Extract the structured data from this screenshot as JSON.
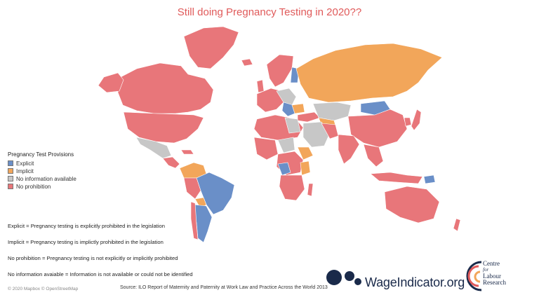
{
  "title": "Still doing Pregnancy Testing in 2020??",
  "legend": {
    "title": "Pregnancy Test Provisions",
    "items": [
      {
        "label": "Explicit",
        "color": "#6a8fc8"
      },
      {
        "label": "Implicit",
        "color": "#f2a65a"
      },
      {
        "label": "No information available",
        "color": "#c7c7c7"
      },
      {
        "label": "No prohibition",
        "color": "#e8767a"
      }
    ]
  },
  "notes": [
    "Explicit = Pregnancy testing is explicitly prohibited in the legislation",
    "Implicit  = Pregnancy testing is implictly prohibited in the legislation",
    "No prohibition = Pregnancy testing is not explicitly or implicitly prohibited",
    "No information avaiable = Information is not available or could not be identified"
  ],
  "attribution": "© 2020 Mapbox © OpenStreetMap",
  "source": "Source: ILO Report of Maternity and Paternity at Work Law and Practice  Across the World 2013",
  "logos": {
    "wageindicator": "WageIndicator.org",
    "clr_line1": "Centre",
    "clr_line2": "for",
    "clr_line3": "Labour",
    "clr_line4": "Research"
  },
  "colors": {
    "explicit": "#6a8fc8",
    "implicit": "#f2a65a",
    "no_info": "#c7c7c7",
    "no_prohibition": "#e8767a",
    "title": "#e05a5a",
    "logo_navy": "#1a2a4a"
  }
}
